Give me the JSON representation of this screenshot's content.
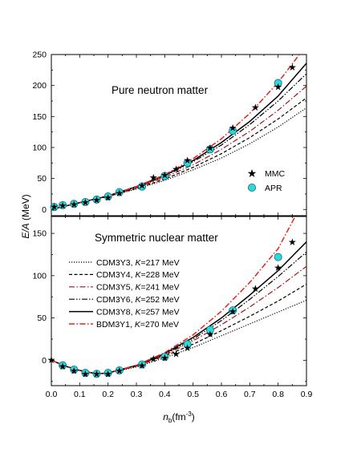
{
  "figure": {
    "ylabel_main": "E/A",
    "ylabel_unit": " (MeV)",
    "xlabel_main": "n",
    "xlabel_sub": "b",
    "xlabel_unit": "(fm",
    "xlabel_exp": "-3",
    "xlabel_close": ")"
  },
  "colors": {
    "black": "#000000",
    "darkred": "#a31515",
    "red": "#e8201a",
    "apr_fill": "#2fd6dc",
    "apr_stroke": "#0a6f78"
  },
  "chart_data": [
    {
      "type": "line",
      "title": "Pure neutron matter",
      "xlim": [
        0.0,
        0.9
      ],
      "ylim": [
        -10,
        250
      ],
      "xticks": [
        "0.0",
        "0.1",
        "0.2",
        "0.3",
        "0.4",
        "0.5",
        "0.6",
        "0.7",
        "0.8",
        "0.9"
      ],
      "yticks": [
        "0",
        "50",
        "100",
        "150",
        "200",
        "250"
      ],
      "grid": false,
      "legend_position": "right",
      "series": [
        {
          "name": "CDM3Y3",
          "style": "dotted",
          "color": "#000000",
          "x": [
            0.0,
            0.1,
            0.2,
            0.3,
            0.4,
            0.5,
            0.6,
            0.7,
            0.8,
            0.9
          ],
          "y": [
            0,
            11,
            21,
            33,
            47,
            64,
            83,
            106,
            133,
            164
          ]
        },
        {
          "name": "CDM3Y4",
          "style": "dashed",
          "color": "#000000",
          "x": [
            0.0,
            0.1,
            0.2,
            0.3,
            0.4,
            0.5,
            0.6,
            0.7,
            0.8,
            0.9
          ],
          "y": [
            0,
            11,
            21,
            34,
            49,
            68,
            90,
            116,
            146,
            180
          ]
        },
        {
          "name": "CDM3Y5",
          "style": "dashdot",
          "color": "#a31515",
          "x": [
            0.0,
            0.1,
            0.2,
            0.3,
            0.4,
            0.5,
            0.6,
            0.7,
            0.8,
            0.9
          ],
          "y": [
            0,
            11,
            22,
            35,
            52,
            72,
            97,
            126,
            160,
            199
          ]
        },
        {
          "name": "CDM3Y6",
          "style": "dashdotdot",
          "color": "#000000",
          "x": [
            0.0,
            0.1,
            0.2,
            0.3,
            0.4,
            0.5,
            0.6,
            0.7,
            0.8,
            0.9
          ],
          "y": [
            0,
            11,
            22,
            36,
            54,
            77,
            104,
            137,
            175,
            219
          ]
        },
        {
          "name": "CDM3Y8",
          "style": "solid",
          "color": "#000000",
          "x": [
            0.0,
            0.1,
            0.2,
            0.3,
            0.4,
            0.5,
            0.6,
            0.7,
            0.8,
            0.9
          ],
          "y": [
            0,
            11,
            22,
            37,
            55,
            79,
            108,
            142,
            183,
            236
          ]
        },
        {
          "name": "BDM3Y1",
          "style": "dashdot",
          "color": "#e8201a",
          "x": [
            0.0,
            0.1,
            0.2,
            0.3,
            0.4,
            0.5,
            0.6,
            0.7,
            0.8,
            0.9
          ],
          "y": [
            0,
            11,
            22,
            37,
            56,
            82,
            114,
            155,
            205,
            265
          ]
        }
      ],
      "markers": [
        {
          "name": "MMC",
          "shape": "star",
          "color": "#000000",
          "x": [
            0.01,
            0.04,
            0.08,
            0.12,
            0.16,
            0.2,
            0.24,
            0.32,
            0.36,
            0.4,
            0.44,
            0.48,
            0.56,
            0.64,
            0.72,
            0.8,
            0.85
          ],
          "y": [
            5,
            7,
            9,
            12,
            16,
            20,
            27,
            39,
            52,
            56,
            66,
            80,
            100,
            132,
            165,
            198,
            230
          ]
        },
        {
          "name": "APR",
          "shape": "circle",
          "color": "#2fd6dc",
          "x": [
            0.01,
            0.04,
            0.08,
            0.12,
            0.16,
            0.2,
            0.24,
            0.32,
            0.4,
            0.48,
            0.56,
            0.64,
            0.8
          ],
          "y": [
            4,
            7,
            9,
            12,
            16,
            21,
            28,
            37,
            54,
            75,
            97,
            127,
            204
          ]
        }
      ]
    },
    {
      "type": "line",
      "title": "Symmetric nuclear matter",
      "xlim": [
        0.0,
        0.9
      ],
      "ylim": [
        -30,
        170
      ],
      "xticks": [
        "0.0",
        "0.1",
        "0.2",
        "0.3",
        "0.4",
        "0.5",
        "0.6",
        "0.7",
        "0.8",
        "0.9"
      ],
      "yticks": [
        "0",
        "50",
        "100",
        "150"
      ],
      "grid": false,
      "legend_position": "left",
      "series": [
        {
          "name": "CDM3Y3",
          "label_suffix": "=217 MeV",
          "style": "dotted",
          "color": "#000000",
          "x": [
            0.0,
            0.05,
            0.1,
            0.16,
            0.2,
            0.3,
            0.4,
            0.5,
            0.6,
            0.7,
            0.8,
            0.9
          ],
          "y": [
            0,
            -7,
            -12,
            -16,
            -15,
            -8,
            3,
            15,
            29,
            43,
            57,
            71
          ]
        },
        {
          "name": "CDM3Y4",
          "label_suffix": "=228 MeV",
          "style": "dashed",
          "color": "#000000",
          "x": [
            0.0,
            0.05,
            0.1,
            0.16,
            0.2,
            0.3,
            0.4,
            0.5,
            0.6,
            0.7,
            0.8,
            0.9
          ],
          "y": [
            0,
            -7,
            -12,
            -16,
            -15,
            -7,
            5,
            19,
            35,
            52,
            70,
            90
          ]
        },
        {
          "name": "CDM3Y5",
          "label_suffix": "=241 MeV",
          "style": "dashdot",
          "color": "#a31515",
          "x": [
            0.0,
            0.05,
            0.1,
            0.16,
            0.2,
            0.3,
            0.4,
            0.5,
            0.6,
            0.7,
            0.8,
            0.9
          ],
          "y": [
            0,
            -7,
            -12,
            -16,
            -15,
            -7,
            6,
            23,
            42,
            63,
            86,
            111
          ]
        },
        {
          "name": "CDM3Y6",
          "label_suffix": "=252 MeV",
          "style": "dashdotdot",
          "color": "#000000",
          "x": [
            0.0,
            0.05,
            0.1,
            0.16,
            0.2,
            0.3,
            0.4,
            0.5,
            0.6,
            0.7,
            0.8,
            0.9
          ],
          "y": [
            0,
            -7,
            -12,
            -16,
            -15,
            -6,
            7,
            25,
            47,
            72,
            99,
            128
          ]
        },
        {
          "name": "CDM3Y8",
          "label_suffix": "=257 MeV",
          "style": "solid",
          "color": "#000000",
          "x": [
            0.0,
            0.05,
            0.1,
            0.16,
            0.2,
            0.3,
            0.4,
            0.5,
            0.6,
            0.7,
            0.8,
            0.9
          ],
          "y": [
            0,
            -7,
            -12,
            -16,
            -15,
            -6,
            8,
            27,
            50,
            77,
            106,
            140
          ]
        },
        {
          "name": "BDM3Y1",
          "label_suffix": "=270 MeV",
          "style": "dashdot",
          "color": "#e8201a",
          "x": [
            0.0,
            0.05,
            0.1,
            0.16,
            0.2,
            0.3,
            0.4,
            0.5,
            0.6,
            0.7,
            0.8,
            0.86
          ],
          "y": [
            0,
            -7,
            -12,
            -16,
            -15,
            -6,
            9,
            30,
            58,
            92,
            132,
            170
          ]
        }
      ],
      "markers": [
        {
          "name": "MMC",
          "shape": "star",
          "color": "#000000",
          "x": [
            0.0,
            0.04,
            0.08,
            0.12,
            0.16,
            0.2,
            0.24,
            0.32,
            0.36,
            0.4,
            0.44,
            0.48,
            0.56,
            0.64,
            0.72,
            0.8,
            0.85
          ],
          "y": [
            1,
            -7,
            -12,
            -16,
            -16,
            -16,
            -12,
            -6,
            2,
            3,
            8,
            15,
            31,
            58,
            85,
            110,
            140
          ]
        },
        {
          "name": "APR",
          "shape": "circle",
          "color": "#2fd6dc",
          "x": [
            0.04,
            0.08,
            0.12,
            0.16,
            0.2,
            0.24,
            0.32,
            0.4,
            0.48,
            0.56,
            0.64,
            0.8
          ],
          "y": [
            -6,
            -11,
            -15,
            -16,
            -15,
            -12,
            -5,
            4,
            19,
            36,
            59,
            122
          ]
        }
      ]
    }
  ],
  "legend_k_label": "K"
}
